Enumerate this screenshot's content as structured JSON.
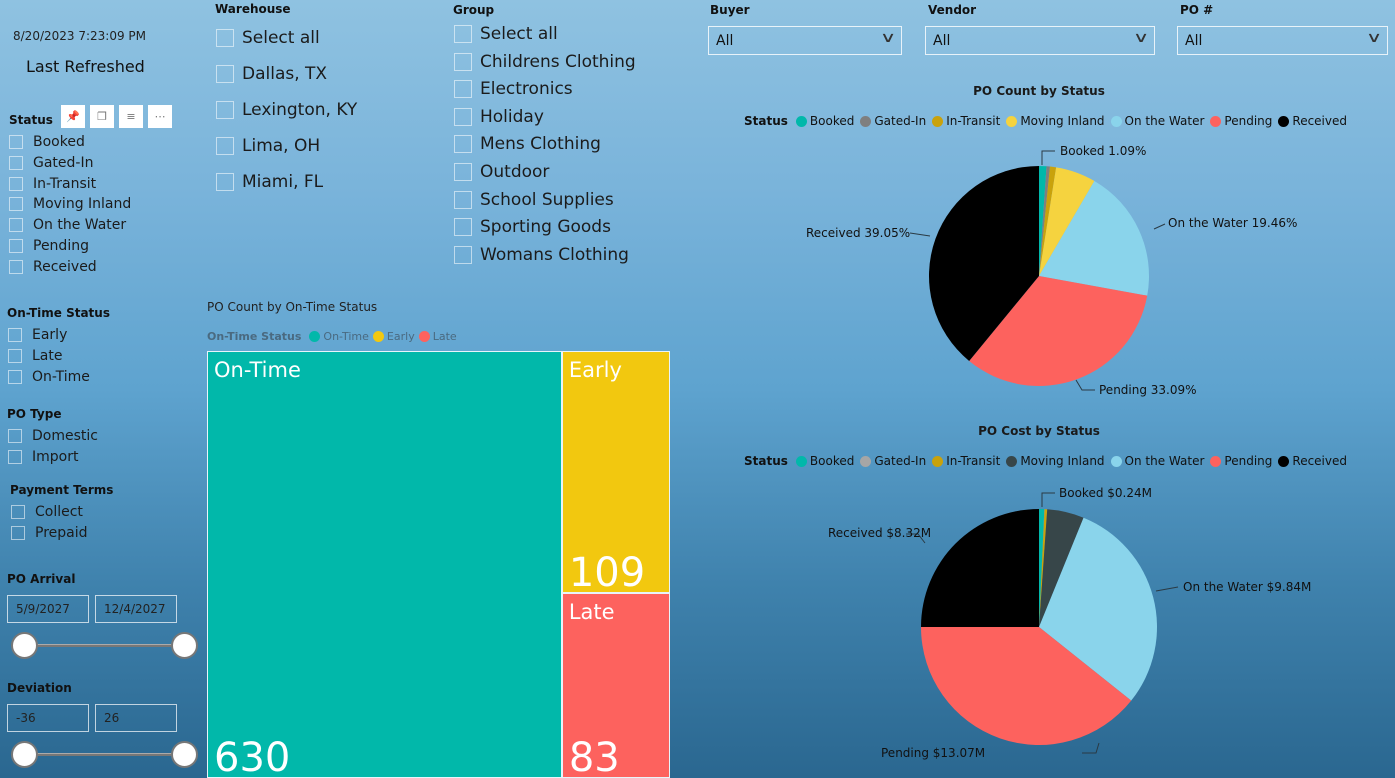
{
  "refresh": {
    "timestamp": "8/20/2023 7:23:09 PM",
    "label": "Last Refreshed"
  },
  "status_slicer": {
    "title": "Status",
    "items": [
      "Booked",
      "Gated-In",
      "In-Transit",
      "Moving Inland",
      "On the Water",
      "Pending",
      "Received"
    ]
  },
  "ontime_slicer": {
    "title": "On-Time Status",
    "items": [
      "Early",
      "Late",
      "On-Time"
    ]
  },
  "potype_slicer": {
    "title": "PO Type",
    "items": [
      "Domestic",
      "Import"
    ]
  },
  "payment_slicer": {
    "title": "Payment Terms",
    "items": [
      "Collect",
      "Prepaid"
    ]
  },
  "po_arrival": {
    "title": "PO Arrival",
    "start": "5/9/2027",
    "end": "12/4/2027"
  },
  "deviation": {
    "title": "Deviation",
    "min": "-36",
    "max": "26"
  },
  "warehouse": {
    "title": "Warehouse",
    "items": [
      "Select all",
      "Dallas, TX",
      "Lexington, KY",
      "Lima, OH",
      "Miami, FL"
    ]
  },
  "group": {
    "title": "Group",
    "items": [
      "Select all",
      "Childrens Clothing",
      "Electronics",
      "Holiday",
      "Mens Clothing",
      "Outdoor",
      "School Supplies",
      "Sporting Goods",
      "Womans Clothing"
    ]
  },
  "filters": {
    "buyer": {
      "label": "Buyer",
      "value": "All"
    },
    "vendor": {
      "label": "Vendor",
      "value": "All"
    },
    "po": {
      "label": "PO #",
      "value": "All"
    }
  },
  "chart_data": [
    {
      "type": "treemap",
      "title": "PO Count by On-Time Status",
      "legend_title": "On-Time Status",
      "categories": [
        "On-Time",
        "Early",
        "Late"
      ],
      "values": [
        630,
        109,
        83
      ],
      "colors": [
        "#01b8aa",
        "#f2c80f",
        "#fd625e"
      ]
    },
    {
      "type": "pie",
      "title": "PO Count by Status",
      "legend_title": "Status",
      "categories": [
        "Booked",
        "Gated-In",
        "In-Transit",
        "Moving Inland",
        "On the Water",
        "Pending",
        "Received"
      ],
      "values": [
        1.09,
        0.5,
        0.9,
        5.91,
        19.46,
        33.09,
        39.05
      ],
      "unit": "%",
      "colors": [
        "#01b8aa",
        "#7f7f7f",
        "#c9a20c",
        "#f5d33f",
        "#8ad4eb",
        "#fd625e",
        "#000000"
      ],
      "labels": {
        "Booked": "Booked 1.09%",
        "On the Water": "On the Water 19.46%",
        "Pending": "Pending 33.09%",
        "Received": "Received 39.05%"
      }
    },
    {
      "type": "pie",
      "title": "PO Cost by Status",
      "legend_title": "Status",
      "categories": [
        "Booked",
        "Gated-In",
        "In-Transit",
        "Moving Inland",
        "On the Water",
        "Pending",
        "Received"
      ],
      "values": [
        0.24,
        0.01,
        0.12,
        1.68,
        9.84,
        13.07,
        8.32
      ],
      "unit": "$M",
      "colors": [
        "#01b8aa",
        "#a6a6a6",
        "#c9a20c",
        "#374649",
        "#8ad4eb",
        "#fd625e",
        "#000000"
      ],
      "labels": {
        "Booked": "Booked $0.24M",
        "On the Water": "On the Water $9.84M",
        "Pending": "Pending $13.07M",
        "Received": "Received $8.32M"
      }
    }
  ]
}
